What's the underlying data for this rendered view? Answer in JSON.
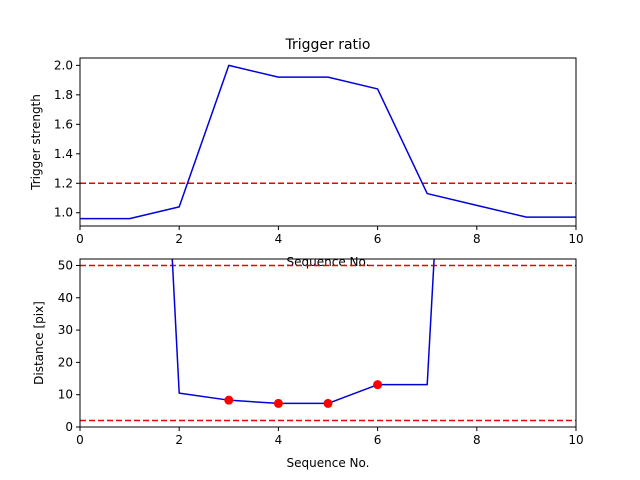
{
  "chart_data": [
    {
      "type": "line",
      "title": "Trigger ratio",
      "xlabel": "Sequence No.",
      "ylabel": "Trigger strength",
      "xlim": [
        0,
        10
      ],
      "ylim": [
        0.91,
        2.05
      ],
      "xticks": [
        "0",
        "2",
        "4",
        "6",
        "8",
        "10"
      ],
      "yticks": [
        "1.0",
        "1.2",
        "1.4",
        "1.6",
        "1.8",
        "2.0"
      ],
      "grid": false,
      "series": [
        {
          "color": "#0000dd",
          "x": [
            0,
            1,
            2,
            3,
            4,
            5,
            6,
            7,
            8,
            9,
            10
          ],
          "y": [
            0.96,
            0.96,
            1.04,
            2.0,
            1.92,
            1.92,
            1.84,
            1.13,
            1.05,
            0.97,
            0.97
          ]
        }
      ],
      "hlines": [
        {
          "y": 1.2,
          "color": "#ee0000",
          "style": "dashed"
        }
      ]
    },
    {
      "type": "line",
      "title": "",
      "xlabel": "Sequence No.",
      "ylabel": "Distance [pix]",
      "xlim": [
        0,
        10
      ],
      "ylim": [
        0,
        52
      ],
      "xticks": [
        "0",
        "2",
        "4",
        "6",
        "8",
        "10"
      ],
      "yticks": [
        "0",
        "10",
        "20",
        "30",
        "40",
        "50"
      ],
      "grid": false,
      "series": [
        {
          "color": "#0000dd",
          "x": [
            1.85,
            2,
            3,
            4,
            5,
            6,
            7,
            7.15
          ],
          "y": [
            55,
            10.5,
            8.3,
            7.3,
            7.3,
            13.1,
            13.1,
            55
          ]
        }
      ],
      "markers": {
        "color": "#ff0000",
        "x": [
          3,
          4,
          5,
          6
        ],
        "y": [
          8.3,
          7.3,
          7.3,
          13.1
        ]
      },
      "hlines": [
        {
          "y": 50,
          "color": "#ee0000",
          "style": "dashed"
        },
        {
          "y": 2,
          "color": "#ee0000",
          "style": "dashed"
        }
      ]
    }
  ]
}
